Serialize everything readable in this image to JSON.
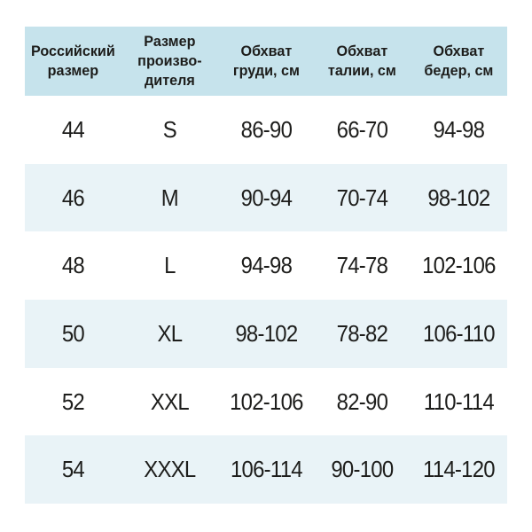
{
  "chart_data": {
    "type": "table",
    "title": "",
    "columns": [
      "Российский\nразмер",
      "Размер\nпроизво-\nдителя",
      "Обхват\nгруди, см",
      "Обхват\nталии, см",
      "Обхват\nбедер, см"
    ],
    "rows": [
      [
        "44",
        "S",
        "86-90",
        "66-70",
        "94-98"
      ],
      [
        "46",
        "M",
        "90-94",
        "70-74",
        "98-102"
      ],
      [
        "48",
        "L",
        "94-98",
        "74-78",
        "102-106"
      ],
      [
        "50",
        "XL",
        "98-102",
        "78-82",
        "106-110"
      ],
      [
        "52",
        "XXL",
        "102-106",
        "82-90",
        "110-114"
      ],
      [
        "54",
        "XXXL",
        "106-114",
        "90-100",
        "114-120"
      ]
    ],
    "layout": {
      "header_background": "#c6e3ec",
      "alt_row_background": "#e9f3f7",
      "row_background": "#ffffff",
      "text_color": "#1d1d1b",
      "grid": "off",
      "legend": "off"
    }
  }
}
